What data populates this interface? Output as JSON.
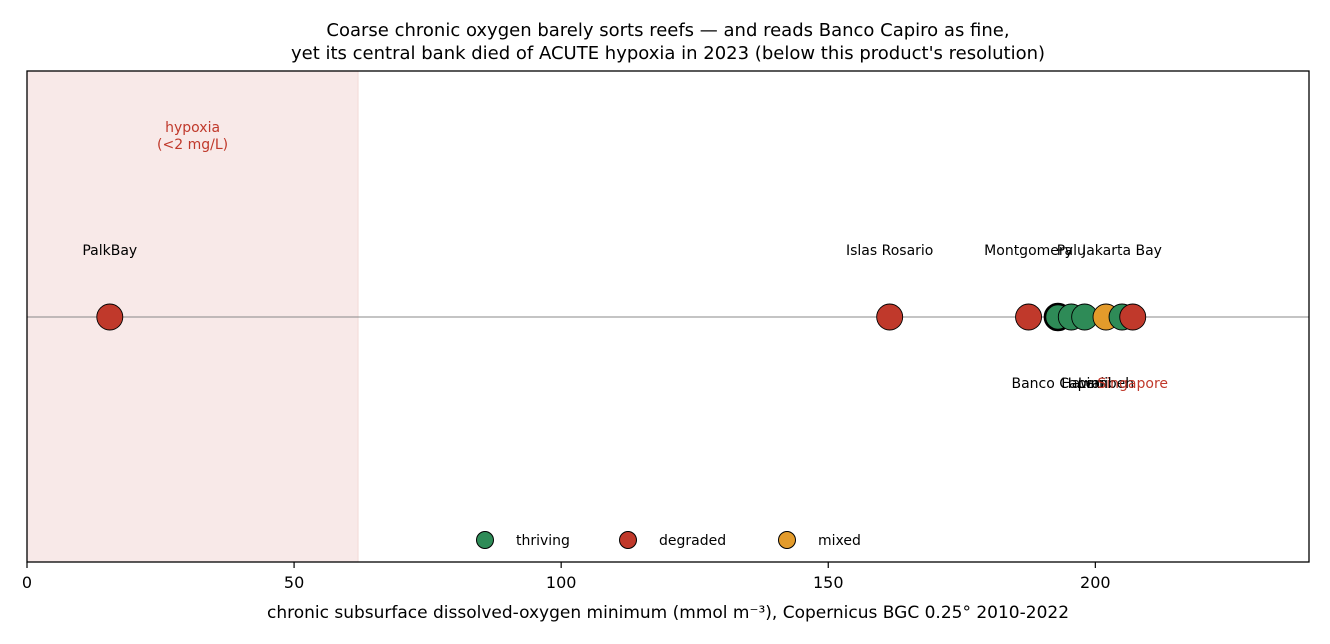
{
  "chart_data": {
    "type": "scatter",
    "title_lines": [
      "Coarse chronic oxygen barely sorts reefs — and reads Banco Capiro as fine,",
      "yet its central bank died of ACUTE hypoxia in 2023 (below this product's resolution)"
    ],
    "xlabel": "chronic subsurface dissolved-oxygen minimum (mmol m⁻³), Copernicus BGC 0.25° 2010-2022",
    "xlim": [
      0,
      240
    ],
    "xticks": [
      0,
      50,
      100,
      150,
      200
    ],
    "grid": false,
    "legend_position": "bottom-center",
    "shaded_region": {
      "x_start": 0,
      "x_end": 62,
      "label_lines": [
        "hypoxia",
        "(<2 mg/L)"
      ],
      "color": "#c0392b"
    },
    "categories": {
      "thriving": "#2e8b57",
      "degraded": "#c0392b",
      "mixed": "#e39b2b"
    },
    "legend": [
      {
        "label": "thriving",
        "category": "thriving"
      },
      {
        "label": "degraded",
        "category": "degraded"
      },
      {
        "label": "mixed",
        "category": "mixed"
      }
    ],
    "points": [
      {
        "name": "PalkBay",
        "x": 15.5,
        "category": "degraded",
        "label_side": "above",
        "highlight": false
      },
      {
        "name": "Islas Rosario",
        "x": 161.5,
        "category": "degraded",
        "label_side": "above",
        "highlight": false
      },
      {
        "name": "Montgomery",
        "x": 187.5,
        "category": "degraded",
        "label_side": "above",
        "highlight": false
      },
      {
        "name": "Banco Capiro",
        "x": 193,
        "category": "thriving",
        "label_side": "below",
        "highlight": true
      },
      {
        "name": "Palu",
        "x": 195.5,
        "category": "thriving",
        "label_side": "above",
        "highlight": false
      },
      {
        "name": "Hawaii",
        "x": 198,
        "category": "thriving",
        "label_side": "below",
        "highlight": false
      },
      {
        "name": "Lembeh",
        "x": 202,
        "category": "mixed",
        "label_side": "below",
        "highlight": false
      },
      {
        "name": "Jakarta Bay",
        "x": 205,
        "category": "thriving",
        "label_side": "above",
        "highlight": false
      },
      {
        "name": "Singapore",
        "x": 207,
        "category": "degraded",
        "label_side": "below",
        "highlight": false
      }
    ]
  }
}
